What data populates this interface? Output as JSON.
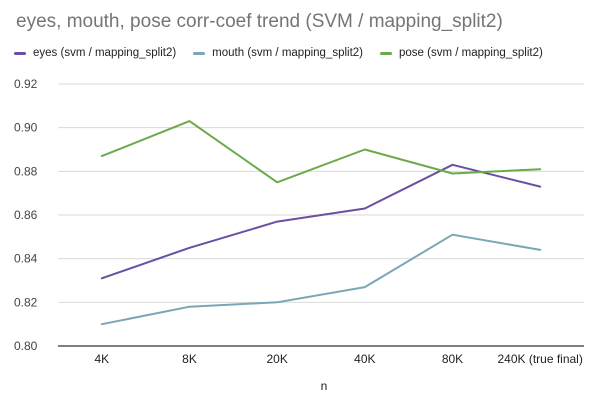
{
  "chart_data": {
    "type": "line",
    "title": "eyes, mouth, pose corr-coef trend (SVM / mapping_split2)",
    "xlabel": "n",
    "ylabel": "",
    "categories": [
      "4K",
      "8K",
      "20K",
      "40K",
      "80K",
      "240K (true final)"
    ],
    "ylim": [
      0.8,
      0.92
    ],
    "yticks": [
      0.8,
      0.82,
      0.84,
      0.86,
      0.88,
      0.9,
      0.92
    ],
    "ytick_labels": [
      "0.80",
      "0.82",
      "0.84",
      "0.86",
      "0.88",
      "0.90",
      "0.92"
    ],
    "grid": true,
    "legend_position": "top-left",
    "series": [
      {
        "name": "eyes (svm / mapping_split2)",
        "color": "#6a4fa3",
        "values": [
          0.831,
          0.845,
          0.857,
          0.863,
          0.883,
          0.873
        ]
      },
      {
        "name": "mouth (svm / mapping_split2)",
        "color": "#79a7b5",
        "values": [
          0.81,
          0.818,
          0.82,
          0.827,
          0.851,
          0.844
        ]
      },
      {
        "name": "pose (svm / mapping_split2)",
        "color": "#6aaa4b",
        "values": [
          0.887,
          0.903,
          0.875,
          0.89,
          0.879,
          0.881
        ]
      }
    ]
  }
}
